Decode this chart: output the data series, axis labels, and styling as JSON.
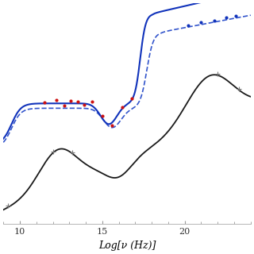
{
  "xlabel": "Log[ν (Hz)]",
  "xlim": [
    9,
    24
  ],
  "ylim": [
    -1.2,
    2.0
  ],
  "xticks": [
    10,
    15,
    20
  ],
  "background_color": "#ffffff",
  "line_color_black": "#1a1a1a",
  "line_color_blue_solid": "#1133bb",
  "line_color_blue_dashed": "#3355cc",
  "dot_color_red": "#cc1111",
  "dot_color_blue": "#1133bb",
  "dot_color_gray": "#777777"
}
